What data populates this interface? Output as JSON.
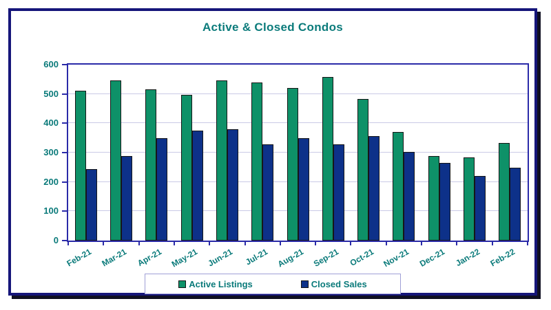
{
  "title": "Active & Closed Condos",
  "colors": {
    "frame_border": "#16167a",
    "frame_shadow": "#101022",
    "plot_border": "#2a2aa8",
    "gridline": "#c9c9e6",
    "title_text": "#0b7b7b",
    "axis_text": "#0a7a7a",
    "active_listings": "#0e9168",
    "closed_sales": "#0d3189",
    "bar_border": "#161616",
    "legend_border": "#9f9fd6"
  },
  "chart_data": {
    "type": "bar",
    "title": "Active & Closed Condos",
    "categories": [
      "Feb-21",
      "Mar-21",
      "Apr-21",
      "May-21",
      "Jun-21",
      "Jul-21",
      "Aug-21",
      "Sep-21",
      "Oct-21",
      "Nov-21",
      "Dec-21",
      "Jan-22",
      "Feb-22"
    ],
    "series": [
      {
        "name": "Active Listings",
        "color": "#0e9168",
        "values": [
          510,
          546,
          515,
          496,
          546,
          540,
          520,
          557,
          483,
          370,
          288,
          283,
          334
        ]
      },
      {
        "name": "Closed Sales",
        "color": "#0d3189",
        "values": [
          243,
          288,
          349,
          376,
          380,
          329,
          349,
          328,
          356,
          302,
          266,
          220,
          249
        ]
      }
    ],
    "xlabel": "",
    "ylabel": "",
    "ylim": [
      0,
      600
    ],
    "ytick_interval": 100,
    "yticks": [
      600,
      500,
      400,
      300,
      200,
      100,
      0
    ],
    "grid": true,
    "legend_position": "bottom"
  },
  "legend": {
    "items": [
      {
        "label": "Active Listings",
        "color": "#0e9168"
      },
      {
        "label": "Closed Sales",
        "color": "#0d3189"
      }
    ]
  }
}
